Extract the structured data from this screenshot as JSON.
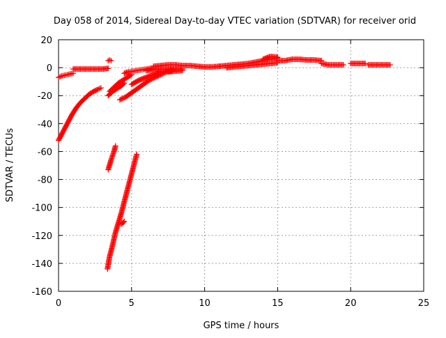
{
  "chart_data": {
    "type": "scatter",
    "title": "Day 058 of 2014, Sidereal Day-to-day VTEC variation (SDTVAR) for receiver orid",
    "xlabel": "GPS time / hours",
    "ylabel": "SDTVAR / TECUs",
    "xlim": [
      0,
      25
    ],
    "ylim": [
      -160,
      20
    ],
    "xticks": [
      0,
      5,
      10,
      15,
      20,
      25
    ],
    "yticks": [
      -160,
      -140,
      -120,
      -100,
      -80,
      -60,
      -40,
      -20,
      0,
      20
    ],
    "grid": true,
    "marker": "plus",
    "color": "#ff0000",
    "series": [
      {
        "x": [
          0.0,
          0.1,
          0.2,
          0.4,
          0.6,
          0.8,
          1.0
        ],
        "y": [
          -7,
          -6.5,
          -6,
          -5.5,
          -5,
          -4.5,
          -4
        ]
      },
      {
        "x": [
          1.0,
          1.5,
          2.0,
          2.5,
          3.0,
          3.4
        ],
        "y": [
          -1,
          -1,
          -1,
          -1,
          -1,
          -0.5
        ]
      },
      {
        "x": [
          0.0,
          0.3,
          0.6,
          0.9,
          1.2,
          1.5,
          1.8,
          2.1,
          2.4,
          2.7,
          2.9
        ],
        "y": [
          -52,
          -46,
          -40,
          -34,
          -29,
          -25,
          -22,
          -19,
          -17,
          -15.5,
          -14.5
        ]
      },
      {
        "x": [
          3.4,
          3.5,
          3.6
        ],
        "y": [
          5,
          5.5,
          5
        ]
      },
      {
        "x": [
          3.4,
          3.7,
          4.0,
          4.3,
          4.5
        ],
        "y": [
          -20,
          -17,
          -15,
          -13,
          -11
        ]
      },
      {
        "x": [
          3.5,
          3.8,
          4.1,
          4.4,
          4.7,
          5.0
        ],
        "y": [
          -17,
          -14,
          -11,
          -9,
          -7,
          -5
        ]
      },
      {
        "x": [
          3.4,
          3.6,
          3.8,
          3.9
        ],
        "y": [
          -73,
          -66,
          -60,
          -56
        ]
      },
      {
        "x": [
          3.35,
          3.5,
          3.7,
          3.9,
          4.1,
          4.3,
          4.5,
          4.7,
          4.9,
          5.1,
          5.35
        ],
        "y": [
          -144,
          -135,
          -127,
          -118,
          -111,
          -104,
          -96,
          -88,
          -80,
          -72,
          -62
        ]
      },
      {
        "x": [
          4.3,
          4.5
        ],
        "y": [
          -112,
          -110
        ]
      },
      {
        "x": [
          4.5,
          4.8,
          5.1,
          5.4,
          5.7,
          6.0,
          6.3,
          6.5
        ],
        "y": [
          -4,
          -3,
          -2.5,
          -2,
          -1.5,
          -1,
          -0.5,
          -0.3
        ]
      },
      {
        "x": [
          4.2,
          4.6,
          5.0,
          5.4,
          5.8,
          6.2,
          6.6,
          7.0,
          7.4,
          7.8
        ],
        "y": [
          -23,
          -21,
          -18,
          -15,
          -12,
          -9,
          -7,
          -5,
          -3,
          -2
        ]
      },
      {
        "x": [
          5.0,
          5.5,
          6.0,
          6.5,
          7.0,
          7.5,
          8.0
        ],
        "y": [
          -12,
          -9,
          -7,
          -5,
          -3,
          -2,
          -1
        ]
      },
      {
        "x": [
          6.0,
          6.5,
          7.0,
          7.5,
          8.0,
          8.5
        ],
        "y": [
          -2,
          -1.5,
          -1,
          -1,
          -1,
          -1
        ]
      },
      {
        "x": [
          6.5,
          7.0,
          7.5,
          8.0,
          8.5,
          9.0,
          9.5,
          10.0,
          10.5,
          11.0
        ],
        "y": [
          1,
          1.5,
          2,
          2,
          1.5,
          1.5,
          1,
          0.5,
          0.5,
          1
        ]
      },
      {
        "x": [
          7.5,
          8.0,
          8.5
        ],
        "y": [
          -3,
          -2.5,
          -2
        ]
      },
      {
        "x": [
          11.0,
          11.5,
          12.0,
          12.5,
          13.0,
          13.5,
          14.0,
          14.5,
          15.0
        ],
        "y": [
          1,
          1.5,
          2,
          2.5,
          3,
          4,
          5,
          6,
          7
        ]
      },
      {
        "x": [
          11.5,
          12.0,
          12.5,
          13.0,
          13.5,
          14.0,
          14.5,
          15.0
        ],
        "y": [
          0,
          0.5,
          1,
          1.5,
          2,
          2.5,
          3,
          3.5
        ]
      },
      {
        "x": [
          14.0,
          14.5,
          15.0
        ],
        "y": [
          6,
          8,
          7.5
        ]
      },
      {
        "x": [
          15.0,
          15.5,
          16.0,
          16.5,
          17.0,
          17.5,
          18.0
        ],
        "y": [
          5,
          5,
          6,
          6,
          5.5,
          5.5,
          5
        ]
      },
      {
        "x": [
          18.0,
          18.5,
          19.0,
          19.5
        ],
        "y": [
          3,
          2,
          2,
          2
        ]
      },
      {
        "x": [
          20.0,
          20.5,
          21.0
        ],
        "y": [
          3,
          3,
          3
        ]
      },
      {
        "x": [
          21.2,
          21.7,
          22.2,
          22.7
        ],
        "y": [
          2,
          2,
          2,
          2
        ]
      }
    ]
  }
}
